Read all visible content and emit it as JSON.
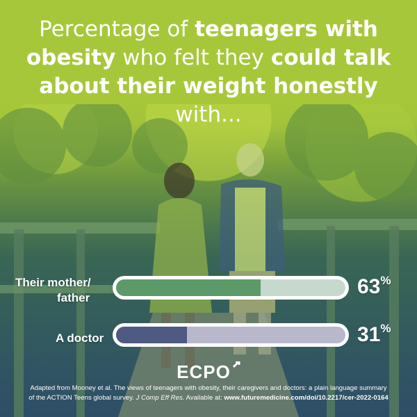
{
  "title": {
    "part1": "Percentage of ",
    "part2": "teenagers with obesity",
    "part3": " who felt they ",
    "part4": "could talk about their weight honestly",
    "part5": " with..."
  },
  "chart_data": {
    "type": "bar",
    "categories": [
      "Their mother/ father",
      "A doctor"
    ],
    "values": [
      63,
      31
    ],
    "value_labels": [
      "63",
      "31"
    ],
    "unit": "%",
    "xlim": [
      0,
      100
    ],
    "colors": {
      "bar1_fill": "#5d9a6a",
      "bar1_track": "#c7d9cc",
      "bar2_fill": "#4f5a82",
      "bar2_track": "#b9b7cc"
    }
  },
  "labels": {
    "row1_line1": "Their mother/",
    "row1_line2": "father",
    "row2": "A doctor"
  },
  "logo": {
    "text": "ECPO",
    "icon": "male-symbol-icon"
  },
  "footer": {
    "line1": "Adapted from Mooney et al. The views of teenagers with obesity, their caregivers and doctors: a plain language summary",
    "line2a": "of the ACTION Teens global survey. ",
    "journal": "J Comp Eff Res.",
    "available": " Available at: ",
    "url": "www.futuremedicine.com/doi/10.2217/cer-2022-0164"
  }
}
